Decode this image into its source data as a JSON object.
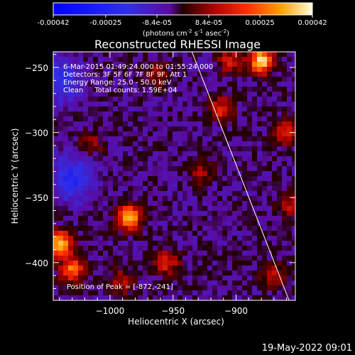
{
  "chart_data": {
    "type": "heatmap",
    "title": "Reconstructed RHESSI Image",
    "xlabel": "Heliocentric X (arcsec)",
    "ylabel": "Heliocentric Y (arcsec)",
    "xlim": [
      -1045,
      -853
    ],
    "ylim": [
      -429,
      -238
    ],
    "xticks": [
      -1000,
      -950,
      -900
    ],
    "yticks": [
      -250,
      -300,
      -350,
      -400
    ],
    "colorbar": {
      "ticks": [
        "-0.00042",
        "-0.00025",
        "-8.4e-05",
        "8.4e-05",
        "0.00025",
        "0.00042"
      ],
      "range": [
        -0.00042,
        0.00042
      ],
      "label_main": "(photons cm",
      "label_exp1": "-2",
      "label_mid": " s",
      "label_exp2": "-1",
      "label_end": " asec",
      "label_exp3": "-2",
      "label_close": ")"
    },
    "info_lines": [
      "6-Mar-2015 01:49:24.000 to 01:55:24.000",
      "Detectors: 3F 5F 6F 7F 8F 9F, Att 1",
      "Energy Range: 25.0 - 50.0 keV",
      "Clean     Total counts: 1.59E+04"
    ],
    "peak_label": "Position of Peak = [-872,-241]",
    "limb_line": [
      [
        -935,
        -238
      ],
      [
        -858,
        -429
      ]
    ],
    "hotspots": [
      {
        "x": -1040,
        "y": -385,
        "value": 0.0004
      },
      {
        "x": -880,
        "y": -245,
        "value": 0.00042
      },
      {
        "x": -985,
        "y": -365,
        "value": 0.00038
      },
      {
        "x": -912,
        "y": -282,
        "value": 0.0002
      },
      {
        "x": -905,
        "y": -245,
        "value": 0.00018
      },
      {
        "x": -1030,
        "y": -405,
        "value": 0.0003
      },
      {
        "x": -860,
        "y": -300,
        "value": 0.0002
      },
      {
        "x": -858,
        "y": -355,
        "value": 0.00016
      },
      {
        "x": -990,
        "y": -415,
        "value": 0.00016
      },
      {
        "x": -955,
        "y": -400,
        "value": 0.0002
      },
      {
        "x": -928,
        "y": -330,
        "value": 0.00014
      },
      {
        "x": -1015,
        "y": -308,
        "value": 0.00012
      },
      {
        "x": -962,
        "y": -255,
        "value": 0.00014
      },
      {
        "x": -870,
        "y": -410,
        "value": 0.00014
      }
    ],
    "coldspots": [
      {
        "x": -1030,
        "y": -335,
        "value": -0.0002
      },
      {
        "x": -1040,
        "y": -260,
        "value": -0.00018
      }
    ]
  },
  "footer": {
    "timestamp": "19-May-2022 09:01"
  }
}
